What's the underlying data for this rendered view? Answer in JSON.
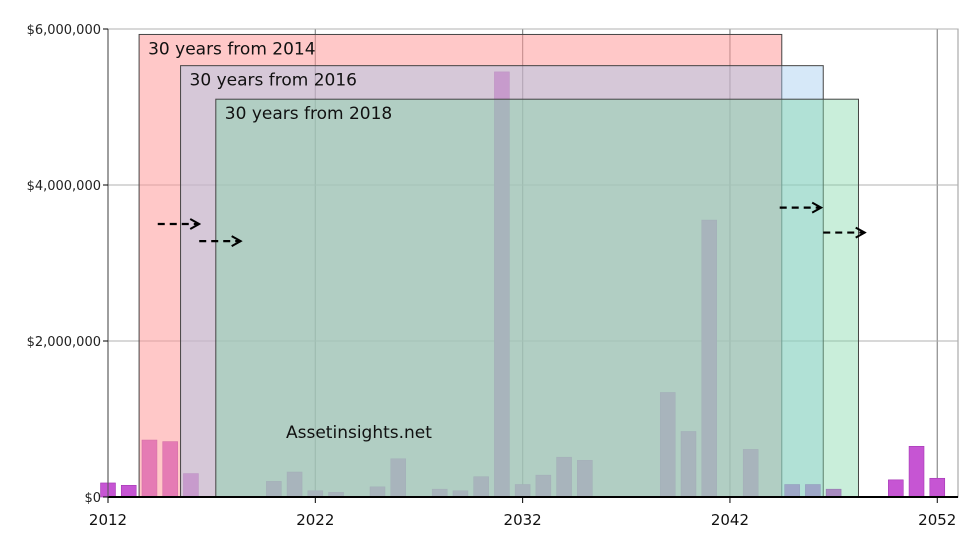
{
  "chart_data": {
    "type": "bar",
    "xlim": [
      2012,
      2053
    ],
    "ylim": [
      0,
      6000000
    ],
    "x_ticks": [
      2012,
      2022,
      2032,
      2042,
      2052
    ],
    "y_ticks": [
      {
        "value": 0,
        "label": "$0"
      },
      {
        "value": 2000000,
        "label": "$2,000,000"
      },
      {
        "value": 4000000,
        "label": "$4,000,000"
      },
      {
        "value": 6000000,
        "label": "$6,000,000"
      }
    ],
    "grid": true,
    "bar_color": "#c655d3",
    "points": [
      {
        "x": 2012,
        "y": 180000
      },
      {
        "x": 2013,
        "y": 150000
      },
      {
        "x": 2014,
        "y": 730000
      },
      {
        "x": 2015,
        "y": 710000
      },
      {
        "x": 2016,
        "y": 300000
      },
      {
        "x": 2020,
        "y": 200000
      },
      {
        "x": 2021,
        "y": 320000
      },
      {
        "x": 2022,
        "y": 80000
      },
      {
        "x": 2023,
        "y": 60000
      },
      {
        "x": 2025,
        "y": 130000
      },
      {
        "x": 2026,
        "y": 490000
      },
      {
        "x": 2028,
        "y": 100000
      },
      {
        "x": 2029,
        "y": 80000
      },
      {
        "x": 2030,
        "y": 260000
      },
      {
        "x": 2031,
        "y": 5450000
      },
      {
        "x": 2032,
        "y": 160000
      },
      {
        "x": 2033,
        "y": 280000
      },
      {
        "x": 2034,
        "y": 510000
      },
      {
        "x": 2035,
        "y": 470000
      },
      {
        "x": 2039,
        "y": 1340000
      },
      {
        "x": 2040,
        "y": 840000
      },
      {
        "x": 2041,
        "y": 3550000
      },
      {
        "x": 2043,
        "y": 610000
      },
      {
        "x": 2045,
        "y": 160000
      },
      {
        "x": 2046,
        "y": 160000
      },
      {
        "x": 2047,
        "y": 100000
      },
      {
        "x": 2050,
        "y": 220000
      },
      {
        "x": 2051,
        "y": 650000
      },
      {
        "x": 2052,
        "y": 240000
      }
    ],
    "windows": [
      {
        "label": "30 years from 2014",
        "start": 2013.5,
        "end": 2044.5,
        "top": 5930000,
        "fill": "#ff9a9a",
        "opacity": 0.55,
        "stroke": "#444444"
      },
      {
        "label": "30 years from 2016",
        "start": 2015.5,
        "end": 2046.5,
        "top": 5530000,
        "fill": "#9ec9ee",
        "opacity": 0.42,
        "stroke": "#444444"
      },
      {
        "label": "30 years from 2018",
        "start": 2017.2,
        "end": 2048.2,
        "top": 5100000,
        "fill": "#7fd7a8",
        "opacity": 0.42,
        "stroke": "#444444"
      }
    ],
    "arrows": [
      {
        "from": 2014.4,
        "to": 2016.4,
        "y": 3500000
      },
      {
        "from": 2016.4,
        "to": 2018.4,
        "y": 3280000
      },
      {
        "from": 2044.4,
        "to": 2046.4,
        "y": 3710000
      },
      {
        "from": 2046.5,
        "to": 2048.5,
        "y": 3390000
      }
    ],
    "annotation": "Assetinsights.net"
  }
}
